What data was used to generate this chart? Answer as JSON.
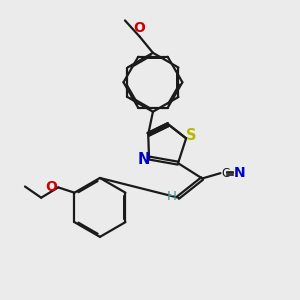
{
  "bg_color": "#ebebeb",
  "bond_color": "#1a1a1a",
  "S_color": "#b8b800",
  "N_color": "#0000cc",
  "O_color": "#cc0000",
  "C_color": "#1a1a1a",
  "H_color": "#4a9090",
  "lw": 1.6,
  "fs": 8.5,
  "xlim": [
    0,
    10
  ],
  "ylim": [
    0,
    10
  ]
}
